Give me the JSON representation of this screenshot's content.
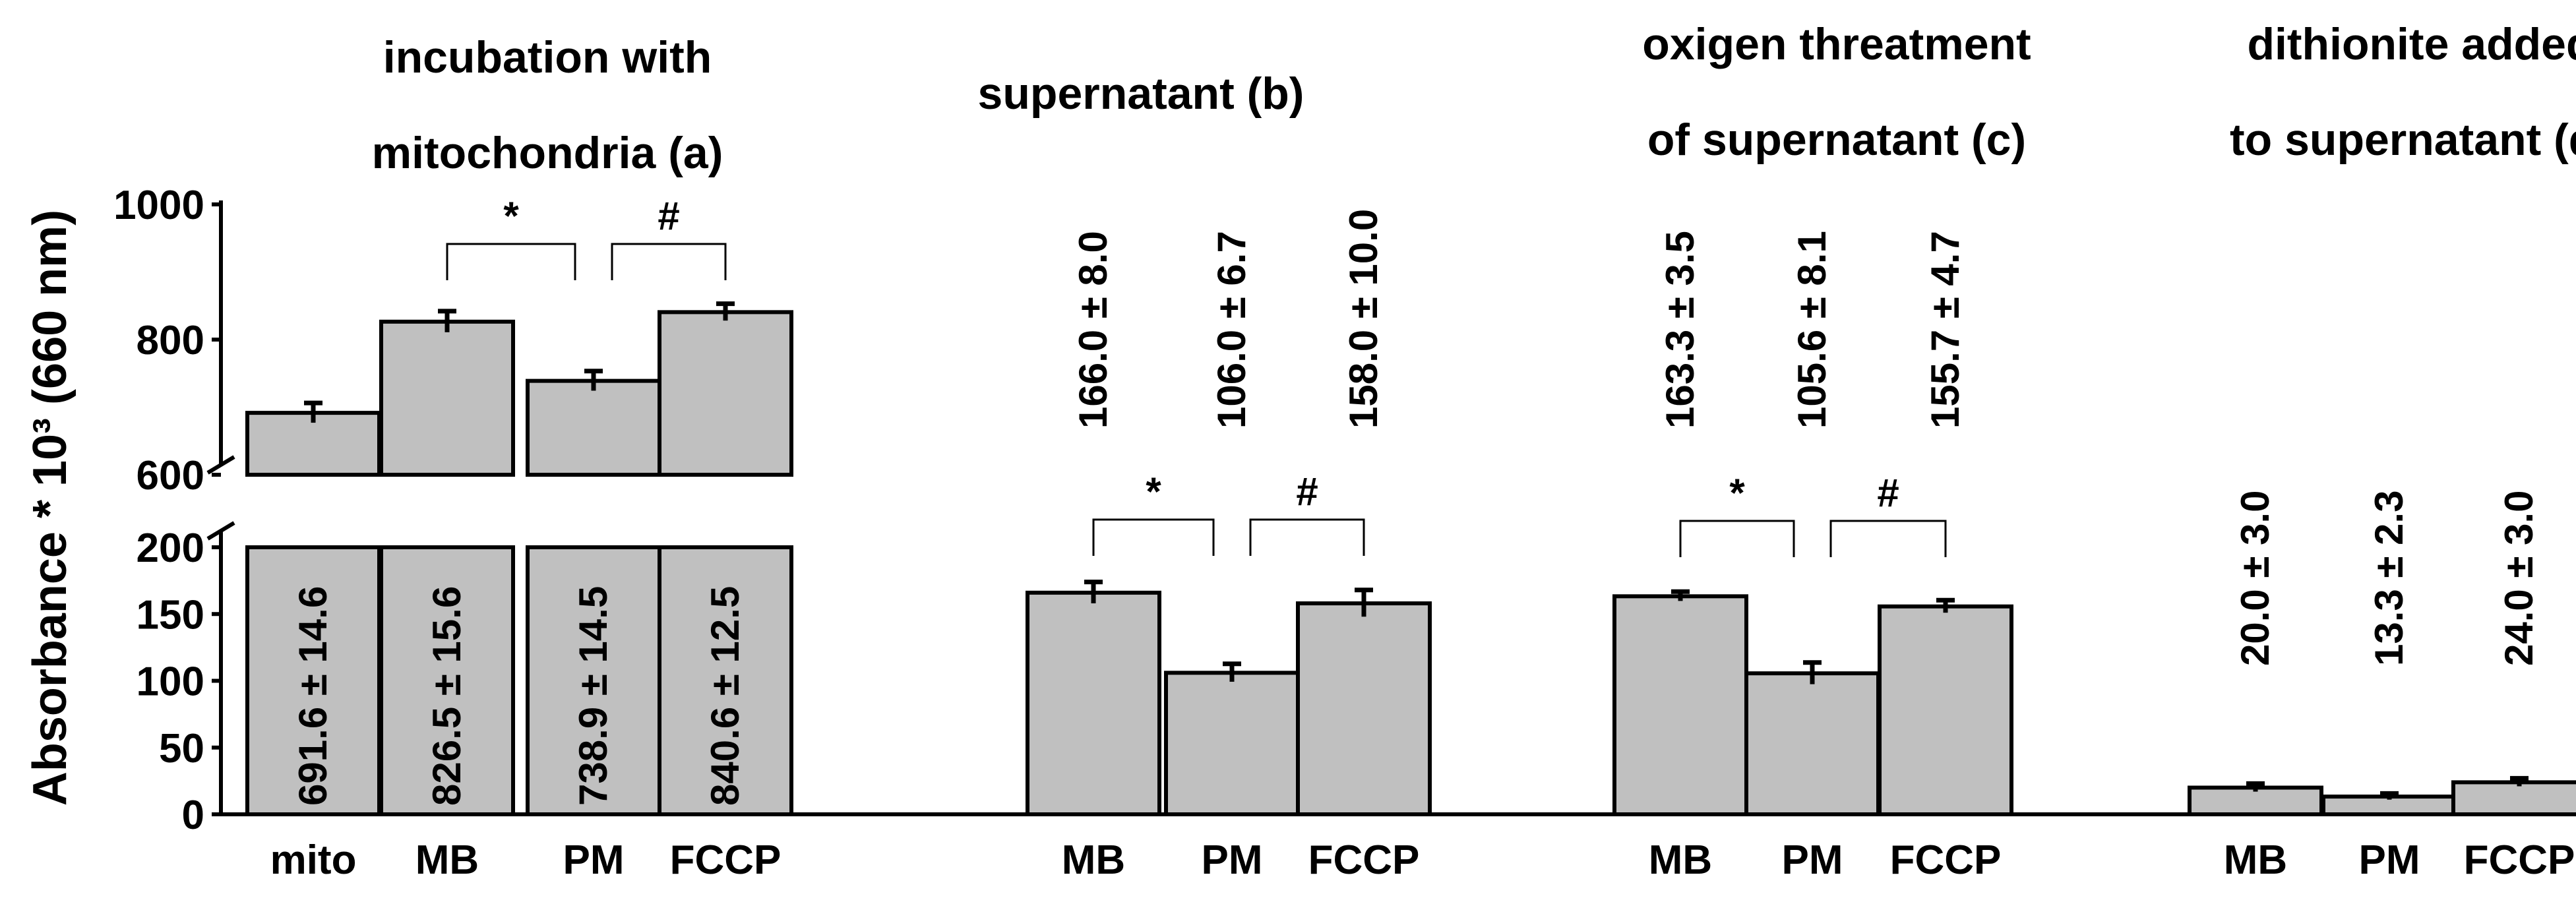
{
  "chart_data": {
    "type": "bar",
    "ylabel": "Absorbance * 10³ (660 nm)",
    "y_ticks_lower": [
      "0",
      "50",
      "100",
      "150",
      "200"
    ],
    "y_ticks_upper": [
      "600",
      "800",
      "1000"
    ],
    "axis_break": true,
    "lower_ylim": [
      0,
      200
    ],
    "upper_ylim": [
      600,
      1000
    ],
    "panels": [
      {
        "title_lines": [
          "incubation with",
          "mitochondria (a)"
        ],
        "categories": [
          "mito",
          "MB",
          "PM",
          "FCCP"
        ],
        "values": [
          691.6,
          826.5,
          738.9,
          840.6
        ],
        "errors": [
          14.6,
          15.6,
          14.5,
          12.5
        ],
        "value_labels": [
          "691.6 ± 14.6",
          "826.5 ± 15.6",
          "738.9 ± 14.5",
          "840.6 ± 12.5"
        ],
        "labels_inside_bars": true,
        "significance": [
          {
            "from": "MB",
            "to": "PM",
            "symbol": "*"
          },
          {
            "from": "PM",
            "to": "FCCP",
            "symbol": "#"
          }
        ]
      },
      {
        "title_lines": [
          "supernatant (b)"
        ],
        "categories": [
          "MB",
          "PM",
          "FCCP"
        ],
        "values": [
          166.0,
          106.0,
          158.0
        ],
        "errors": [
          8.0,
          6.7,
          10.0
        ],
        "value_labels": [
          "166.0 ± 8.0",
          "106.0 ± 6.7",
          "158.0 ± 10.0"
        ],
        "labels_inside_bars": false,
        "significance": [
          {
            "from": "MB",
            "to": "PM",
            "symbol": "*"
          },
          {
            "from": "PM",
            "to": "FCCP",
            "symbol": "#"
          }
        ]
      },
      {
        "title_lines": [
          "oxigen threatment",
          "of supernatant (c)"
        ],
        "categories": [
          "MB",
          "PM",
          "FCCP"
        ],
        "values": [
          163.3,
          105.6,
          155.7
        ],
        "errors": [
          3.5,
          8.1,
          4.7
        ],
        "value_labels": [
          "163.3 ± 3.5",
          "105.6 ± 8.1",
          "155.7 ± 4.7"
        ],
        "labels_inside_bars": false,
        "significance": [
          {
            "from": "MB",
            "to": "PM",
            "symbol": "*"
          },
          {
            "from": "PM",
            "to": "FCCP",
            "symbol": "#"
          }
        ]
      },
      {
        "title_lines": [
          "dithionite added",
          "to supernatant (d)"
        ],
        "categories": [
          "MB",
          "PM",
          "FCCP"
        ],
        "values": [
          20.0,
          13.3,
          24.0
        ],
        "errors": [
          3.0,
          2.3,
          3.0
        ],
        "value_labels": [
          "20.0 ± 3.0",
          "13.3 ± 2.3",
          "24.0 ± 3.0"
        ],
        "labels_inside_bars": false,
        "significance": []
      }
    ]
  }
}
